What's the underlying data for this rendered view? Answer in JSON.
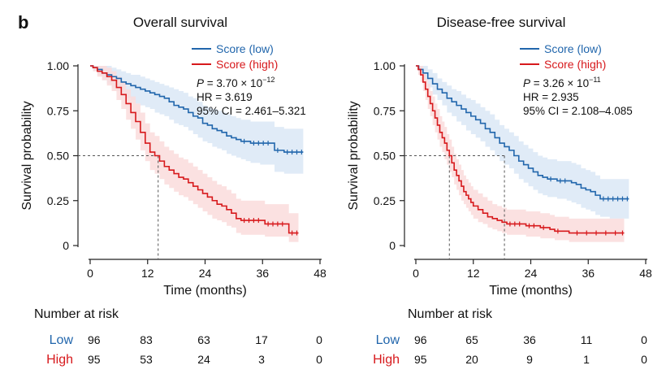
{
  "panel_label": "b",
  "x_tick_labels": [
    "0",
    "12",
    "24",
    "36",
    "48"
  ],
  "y_tick_labels": [
    "1.00",
    "0.75",
    "0.50",
    "0.25",
    "0"
  ],
  "colors": {
    "low": "#2166ac",
    "high": "#d7191c",
    "low_band": "#dbe8f6",
    "high_band": "#fadcdc",
    "reference": "#555555",
    "text": "#111111"
  },
  "chart_data": [
    {
      "type": "line",
      "title": "Overall survival",
      "xlabel": "Time (months)",
      "ylabel": "Survival probability",
      "xlim": [
        0,
        48
      ],
      "ylim": [
        0,
        1
      ],
      "xticks": [
        0,
        12,
        24,
        36,
        48
      ],
      "yticks": [
        0,
        0.25,
        0.5,
        0.75,
        1.0
      ],
      "grid": false,
      "legend_position": "top-right",
      "series": [
        {
          "name": "Score (low)",
          "color": "#2166ac",
          "x": [
            0,
            0.6,
            1.5,
            2.5,
            3.5,
            4.5,
            5.5,
            6.5,
            7.5,
            8.5,
            9.5,
            10.5,
            11.5,
            12.5,
            13.5,
            14.5,
            15.5,
            16.5,
            17.5,
            18.5,
            19.5,
            20.5,
            21.5,
            22.5,
            23.5,
            24.5,
            25.5,
            26.5,
            27.5,
            28.5,
            29.5,
            30.5,
            31.5,
            32.5,
            33.5,
            34.5,
            35.5,
            36.5,
            37.5,
            38.5,
            39.5,
            40.5,
            41.5,
            42.5,
            43.5,
            44.5
          ],
          "y": [
            1.0,
            0.99,
            0.98,
            0.96,
            0.95,
            0.94,
            0.93,
            0.91,
            0.9,
            0.89,
            0.88,
            0.87,
            0.86,
            0.85,
            0.84,
            0.83,
            0.82,
            0.8,
            0.78,
            0.77,
            0.76,
            0.74,
            0.72,
            0.71,
            0.68,
            0.67,
            0.65,
            0.64,
            0.63,
            0.61,
            0.6,
            0.59,
            0.58,
            0.58,
            0.57,
            0.57,
            0.57,
            0.57,
            0.57,
            0.53,
            0.53,
            0.52,
            0.52,
            0.52,
            0.52,
            0.52
          ],
          "ci_lower": [
            1.0,
            0.97,
            0.95,
            0.92,
            0.9,
            0.88,
            0.86,
            0.84,
            0.82,
            0.81,
            0.79,
            0.78,
            0.77,
            0.76,
            0.74,
            0.73,
            0.72,
            0.7,
            0.68,
            0.67,
            0.66,
            0.64,
            0.62,
            0.6,
            0.58,
            0.57,
            0.55,
            0.54,
            0.53,
            0.51,
            0.5,
            0.49,
            0.48,
            0.47,
            0.46,
            0.46,
            0.45,
            0.45,
            0.45,
            0.41,
            0.41,
            0.4,
            0.4,
            0.4,
            0.4,
            0.4
          ],
          "ci_upper": [
            1.0,
            1.0,
            1.0,
            1.0,
            1.0,
            0.99,
            0.98,
            0.97,
            0.96,
            0.95,
            0.95,
            0.94,
            0.93,
            0.92,
            0.91,
            0.9,
            0.89,
            0.88,
            0.87,
            0.86,
            0.85,
            0.83,
            0.82,
            0.8,
            0.78,
            0.77,
            0.76,
            0.75,
            0.74,
            0.73,
            0.72,
            0.71,
            0.7,
            0.7,
            0.69,
            0.69,
            0.69,
            0.69,
            0.69,
            0.66,
            0.66,
            0.65,
            0.65,
            0.65,
            0.65,
            0.65
          ]
        },
        {
          "name": "Score (high)",
          "color": "#d7191c",
          "x": [
            0,
            0.6,
            1.5,
            2.5,
            3.5,
            4.5,
            5.5,
            6.5,
            7.5,
            8.5,
            9.5,
            10.5,
            11.5,
            12.5,
            13.5,
            14.5,
            15.5,
            16.5,
            17.5,
            18.5,
            19.5,
            20.5,
            21.5,
            22.5,
            23.5,
            24.5,
            25.5,
            26.5,
            27.5,
            28.5,
            29.5,
            30.5,
            31.5,
            32.5,
            33.5,
            34.5,
            35.5,
            36.5,
            37.5,
            38.5,
            39.5,
            40.5,
            41.5,
            42.5,
            43.5
          ],
          "y": [
            1.0,
            0.99,
            0.97,
            0.96,
            0.94,
            0.92,
            0.88,
            0.84,
            0.79,
            0.74,
            0.69,
            0.63,
            0.57,
            0.52,
            0.5,
            0.47,
            0.44,
            0.42,
            0.4,
            0.38,
            0.37,
            0.35,
            0.33,
            0.31,
            0.29,
            0.27,
            0.25,
            0.23,
            0.22,
            0.2,
            0.18,
            0.15,
            0.14,
            0.14,
            0.14,
            0.14,
            0.14,
            0.12,
            0.12,
            0.12,
            0.12,
            0.12,
            0.07,
            0.07,
            0.07
          ],
          "ci_lower": [
            1.0,
            0.97,
            0.94,
            0.92,
            0.89,
            0.86,
            0.81,
            0.76,
            0.7,
            0.65,
            0.59,
            0.53,
            0.47,
            0.42,
            0.4,
            0.37,
            0.34,
            0.32,
            0.3,
            0.28,
            0.27,
            0.25,
            0.23,
            0.21,
            0.19,
            0.17,
            0.15,
            0.14,
            0.13,
            0.11,
            0.1,
            0.07,
            0.06,
            0.06,
            0.06,
            0.06,
            0.06,
            0.05,
            0.05,
            0.05,
            0.05,
            0.05,
            0.02,
            0.02,
            0.02
          ],
          "ci_upper": [
            1.0,
            1.0,
            1.0,
            1.0,
            0.99,
            0.97,
            0.94,
            0.91,
            0.87,
            0.83,
            0.79,
            0.74,
            0.68,
            0.63,
            0.61,
            0.58,
            0.55,
            0.53,
            0.51,
            0.49,
            0.48,
            0.46,
            0.44,
            0.42,
            0.4,
            0.38,
            0.36,
            0.34,
            0.33,
            0.31,
            0.29,
            0.26,
            0.25,
            0.25,
            0.25,
            0.25,
            0.25,
            0.23,
            0.23,
            0.23,
            0.23,
            0.23,
            0.18,
            0.18,
            0.18
          ]
        }
      ],
      "reference_lines": {
        "y": 0.5,
        "x": [
          14.2
        ]
      },
      "annotation_lines": [
        {
          "prefix": "P",
          "text": " = 3.70 × 10",
          "superscript": "−12"
        },
        {
          "prefix": "",
          "text": "HR = 3.619",
          "superscript": ""
        },
        {
          "prefix": "",
          "text": "95% CI = 2.461–5.321",
          "superscript": ""
        }
      ],
      "risk_table": {
        "title": "Number at risk",
        "rows": [
          {
            "label": "Low",
            "values": [
              "96",
              "83",
              "63",
              "17",
              "0"
            ]
          },
          {
            "label": "High",
            "values": [
              "95",
              "53",
              "24",
              "3",
              "0"
            ]
          }
        ]
      }
    },
    {
      "type": "line",
      "title": "Disease-free survival",
      "xlabel": "Time (months)",
      "ylabel": "Survival probability",
      "xlim": [
        0,
        48
      ],
      "ylim": [
        0,
        1
      ],
      "xticks": [
        0,
        12,
        24,
        36,
        48
      ],
      "yticks": [
        0,
        0.25,
        0.5,
        0.75,
        1.0
      ],
      "grid": false,
      "legend_position": "top-right",
      "series": [
        {
          "name": "Score (low)",
          "color": "#2166ac",
          "x": [
            0,
            0.6,
            1.5,
            2.5,
            3.5,
            4.5,
            5.5,
            6.5,
            7.5,
            8.5,
            9.5,
            10.5,
            11.5,
            12.5,
            13.5,
            14.5,
            15.5,
            16.5,
            17.5,
            18.5,
            19.5,
            20.5,
            21.5,
            22.5,
            23.5,
            24.5,
            25.5,
            26.5,
            27.5,
            28.5,
            29.5,
            30.5,
            31.5,
            32.5,
            33.5,
            34.5,
            35.5,
            36.5,
            37.5,
            38.5,
            39.5,
            40.5,
            41.5,
            42.5,
            43.5,
            44.5
          ],
          "y": [
            1.0,
            0.98,
            0.96,
            0.93,
            0.9,
            0.87,
            0.85,
            0.82,
            0.8,
            0.78,
            0.76,
            0.74,
            0.72,
            0.7,
            0.68,
            0.65,
            0.63,
            0.6,
            0.57,
            0.55,
            0.53,
            0.5,
            0.47,
            0.45,
            0.43,
            0.41,
            0.39,
            0.38,
            0.37,
            0.37,
            0.36,
            0.36,
            0.36,
            0.35,
            0.34,
            0.32,
            0.31,
            0.3,
            0.28,
            0.26,
            0.26,
            0.26,
            0.26,
            0.26,
            0.26,
            0.26
          ],
          "ci_lower": [
            1.0,
            0.95,
            0.92,
            0.88,
            0.84,
            0.81,
            0.78,
            0.74,
            0.72,
            0.69,
            0.67,
            0.64,
            0.62,
            0.6,
            0.58,
            0.55,
            0.53,
            0.5,
            0.47,
            0.45,
            0.43,
            0.4,
            0.37,
            0.35,
            0.33,
            0.31,
            0.29,
            0.28,
            0.27,
            0.27,
            0.26,
            0.26,
            0.25,
            0.24,
            0.23,
            0.21,
            0.2,
            0.19,
            0.17,
            0.16,
            0.16,
            0.15,
            0.15,
            0.15,
            0.15,
            0.15
          ],
          "ci_upper": [
            1.0,
            1.0,
            1.0,
            0.98,
            0.96,
            0.93,
            0.91,
            0.89,
            0.87,
            0.86,
            0.84,
            0.82,
            0.81,
            0.79,
            0.77,
            0.75,
            0.73,
            0.7,
            0.67,
            0.65,
            0.63,
            0.61,
            0.58,
            0.56,
            0.54,
            0.52,
            0.5,
            0.49,
            0.48,
            0.48,
            0.47,
            0.47,
            0.47,
            0.46,
            0.45,
            0.43,
            0.42,
            0.41,
            0.39,
            0.37,
            0.37,
            0.37,
            0.37,
            0.37,
            0.37,
            0.37
          ]
        },
        {
          "name": "Score (high)",
          "color": "#d7191c",
          "x": [
            0,
            0.5,
            1,
            1.5,
            2,
            2.5,
            3,
            3.5,
            4,
            4.5,
            5,
            5.5,
            6,
            6.5,
            7,
            7.5,
            8,
            8.5,
            9,
            9.5,
            10,
            10.5,
            11,
            11.5,
            12,
            13,
            14,
            15,
            16,
            17,
            18,
            19,
            20,
            21,
            22,
            23,
            24,
            25,
            26,
            27,
            28,
            29,
            30,
            32,
            34,
            36,
            38,
            40,
            42,
            43.5
          ],
          "y": [
            1.0,
            0.98,
            0.95,
            0.91,
            0.87,
            0.83,
            0.79,
            0.75,
            0.71,
            0.67,
            0.63,
            0.6,
            0.57,
            0.53,
            0.5,
            0.46,
            0.42,
            0.39,
            0.36,
            0.33,
            0.3,
            0.28,
            0.26,
            0.24,
            0.22,
            0.2,
            0.18,
            0.16,
            0.15,
            0.14,
            0.13,
            0.12,
            0.12,
            0.12,
            0.12,
            0.11,
            0.11,
            0.11,
            0.1,
            0.1,
            0.09,
            0.08,
            0.08,
            0.07,
            0.07,
            0.07,
            0.07,
            0.07,
            0.07,
            0.07
          ],
          "ci_lower": [
            1.0,
            0.95,
            0.91,
            0.86,
            0.81,
            0.76,
            0.72,
            0.67,
            0.63,
            0.59,
            0.55,
            0.52,
            0.48,
            0.45,
            0.41,
            0.38,
            0.34,
            0.31,
            0.28,
            0.25,
            0.23,
            0.21,
            0.19,
            0.17,
            0.15,
            0.13,
            0.12,
            0.1,
            0.09,
            0.08,
            0.07,
            0.06,
            0.06,
            0.06,
            0.06,
            0.05,
            0.05,
            0.05,
            0.04,
            0.04,
            0.04,
            0.03,
            0.03,
            0.02,
            0.02,
            0.02,
            0.02,
            0.02,
            0.02,
            0.02
          ],
          "ci_upper": [
            1.0,
            1.0,
            1.0,
            0.96,
            0.93,
            0.9,
            0.86,
            0.83,
            0.79,
            0.76,
            0.72,
            0.69,
            0.66,
            0.62,
            0.59,
            0.55,
            0.51,
            0.48,
            0.45,
            0.42,
            0.39,
            0.37,
            0.35,
            0.33,
            0.31,
            0.29,
            0.27,
            0.25,
            0.23,
            0.22,
            0.21,
            0.2,
            0.2,
            0.2,
            0.2,
            0.19,
            0.19,
            0.19,
            0.18,
            0.18,
            0.17,
            0.16,
            0.16,
            0.15,
            0.15,
            0.15,
            0.15,
            0.15,
            0.15,
            0.15
          ]
        }
      ],
      "reference_lines": {
        "y": 0.5,
        "x": [
          7.0,
          18.5
        ]
      },
      "annotation_lines": [
        {
          "prefix": "P",
          "text": " = 3.26 × 10",
          "superscript": "−11"
        },
        {
          "prefix": "",
          "text": "HR = 2.935",
          "superscript": ""
        },
        {
          "prefix": "",
          "text": "95% CI = 2.108–4.085",
          "superscript": ""
        }
      ],
      "risk_table": {
        "title": "Number at risk",
        "rows": [
          {
            "label": "Low",
            "values": [
              "96",
              "65",
              "36",
              "11",
              "0"
            ]
          },
          {
            "label": "High",
            "values": [
              "95",
              "20",
              "9",
              "1",
              "0"
            ]
          }
        ]
      }
    }
  ]
}
